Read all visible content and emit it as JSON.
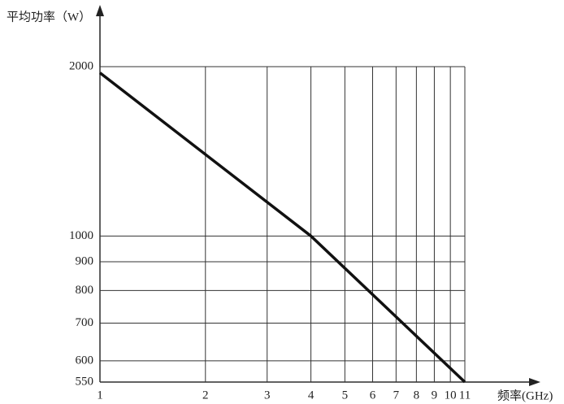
{
  "chart_data": {
    "type": "line",
    "y_label": "平均功率（W）",
    "x_label": "频率(GHz)",
    "x": [
      1,
      4,
      11
    ],
    "series": [
      {
        "name": null,
        "color": "#111111",
        "values": [
          1950,
          1000,
          550
        ]
      }
    ],
    "xlim": [
      1,
      11
    ],
    "xticks": [
      1,
      2,
      3,
      4,
      5,
      6,
      7,
      8,
      9,
      10,
      11
    ],
    "ylim": [
      550,
      2000
    ],
    "yticks": [
      550,
      600,
      700,
      800,
      900,
      1000,
      2000
    ],
    "xscale": "log",
    "yscale": "log",
    "grid": true
  }
}
